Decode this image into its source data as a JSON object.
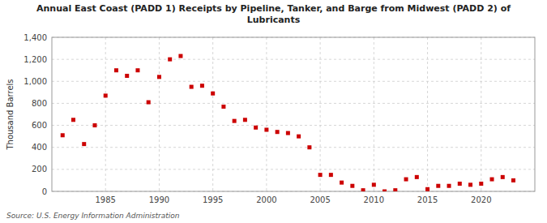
{
  "chart_data": {
    "type": "scatter",
    "title": "Annual East Coast (PADD 1) Receipts by Pipeline, Tanker, and Barge from Midwest (PADD 2) of\nLubricants",
    "y_label": "Thousand Barrels",
    "source": "Source: U.S. Energy Information Administration",
    "x": [
      1981,
      1982,
      1983,
      1984,
      1985,
      1986,
      1987,
      1988,
      1989,
      1990,
      1991,
      1992,
      1993,
      1994,
      1995,
      1996,
      1997,
      1998,
      1999,
      2000,
      2001,
      2002,
      2003,
      2004,
      2005,
      2006,
      2007,
      2008,
      2009,
      2010,
      2011,
      2012,
      2013,
      2014,
      2015,
      2016,
      2017,
      2018,
      2019,
      2020,
      2021,
      2022,
      2023
    ],
    "values": [
      510,
      650,
      430,
      600,
      870,
      1100,
      1050,
      1100,
      810,
      1040,
      1200,
      1230,
      950,
      960,
      890,
      770,
      640,
      650,
      580,
      560,
      540,
      530,
      500,
      400,
      150,
      150,
      80,
      50,
      10,
      60,
      0,
      10,
      110,
      130,
      20,
      50,
      50,
      70,
      60,
      70,
      110,
      130,
      100
    ],
    "color": "#cc0000",
    "marker": "square",
    "xlim": [
      1980,
      2025
    ],
    "xticks": [
      1985,
      1990,
      1995,
      2000,
      2005,
      2010,
      2015,
      2020
    ],
    "ylim": [
      0,
      1400
    ],
    "yticks": [
      0,
      200,
      400,
      600,
      800,
      {
        "value": 1000,
        "label": "1,000"
      },
      {
        "value": 1200,
        "label": "1,200"
      },
      {
        "value": 1400,
        "label": "1,400"
      }
    ],
    "grid": true
  }
}
